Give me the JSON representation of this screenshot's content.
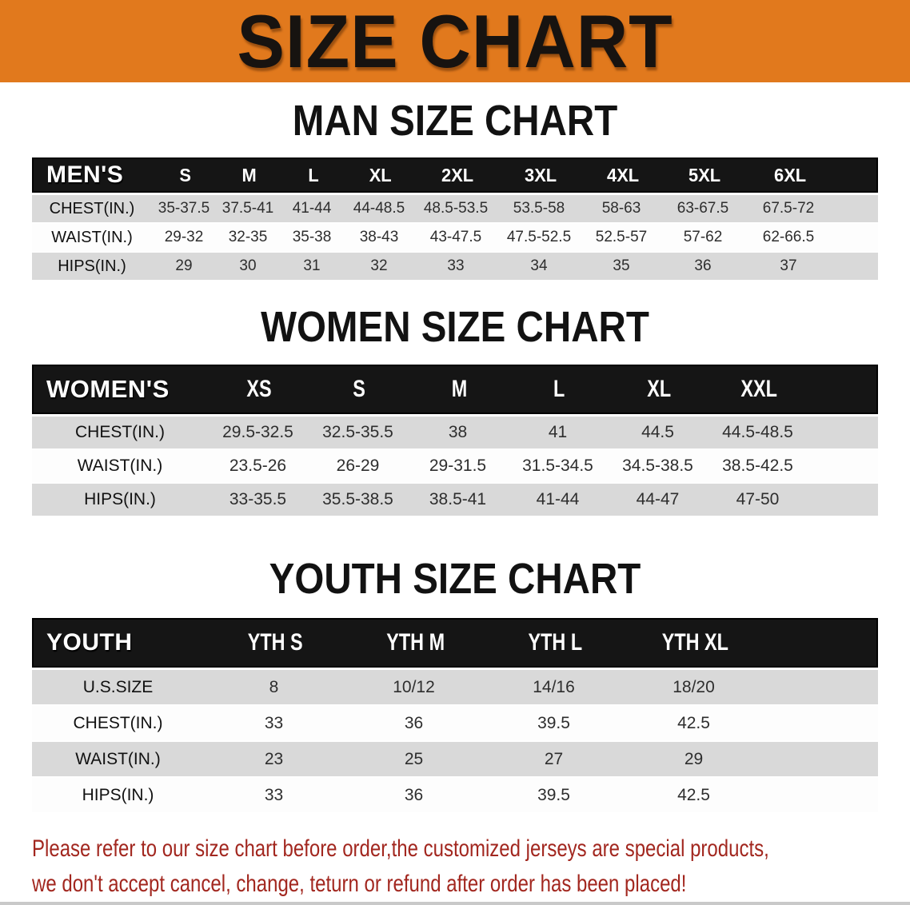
{
  "banner": {
    "title": "SIZE CHART",
    "bg_color": "#E1791D"
  },
  "colors": {
    "banner_orange": "#E1791D",
    "table_header_black": "#151515",
    "row_gray": "#D9D9D9",
    "disclaimer_red": "#A2271F"
  },
  "sections": [
    {
      "heading": "MAN SIZE CHART",
      "table": {
        "name": "MEN'S",
        "sizes": [
          "S",
          "M",
          "L",
          "XL",
          "2XL",
          "3XL",
          "4XL",
          "5XL",
          "6XL"
        ],
        "rows": [
          {
            "label": "CHEST(IN.)",
            "values": [
              "35-37.5",
              "37.5-41",
              "41-44",
              "44-48.5",
              "48.5-53.5",
              "53.5-58",
              "58-63",
              "63-67.5",
              "67.5-72"
            ]
          },
          {
            "label": "WAIST(IN.)",
            "values": [
              "29-32",
              "32-35",
              "35-38",
              "38-43",
              "43-47.5",
              "47.5-52.5",
              "52.5-57",
              "57-62",
              "62-66.5"
            ]
          },
          {
            "label": "HIPS(IN.)",
            "values": [
              "29",
              "30",
              "31",
              "32",
              "33",
              "34",
              "35",
              "36",
              "37"
            ]
          }
        ]
      }
    },
    {
      "heading": "WOMEN SIZE CHART",
      "table": {
        "name": "WOMEN'S",
        "sizes": [
          "XS",
          "S",
          "M",
          "L",
          "XL",
          "XXL"
        ],
        "rows": [
          {
            "label": "CHEST(IN.)",
            "values": [
              "29.5-32.5",
              "32.5-35.5",
              "38",
              "41",
              "44.5",
              "44.5-48.5"
            ]
          },
          {
            "label": "WAIST(IN.)",
            "values": [
              "23.5-26",
              "26-29",
              "29-31.5",
              "31.5-34.5",
              "34.5-38.5",
              "38.5-42.5"
            ]
          },
          {
            "label": "HIPS(IN.)",
            "values": [
              "33-35.5",
              "35.5-38.5",
              "38.5-41",
              "41-44",
              "44-47",
              "47-50"
            ]
          }
        ]
      }
    },
    {
      "heading": "YOUTH SIZE CHART",
      "table": {
        "name": "YOUTH",
        "sizes": [
          "YTH S",
          "YTH M",
          "YTH L",
          "YTH XL"
        ],
        "rows": [
          {
            "label": "U.S.SIZE",
            "values": [
              "8",
              "10/12",
              "14/16",
              "18/20"
            ]
          },
          {
            "label": "CHEST(IN.)",
            "values": [
              "33",
              "36",
              "39.5",
              "42.5"
            ]
          },
          {
            "label": "WAIST(IN.)",
            "values": [
              "23",
              "25",
              "27",
              "29"
            ]
          },
          {
            "label": "HIPS(IN.)",
            "values": [
              "33",
              "36",
              "39.5",
              "42.5"
            ]
          }
        ]
      }
    }
  ],
  "disclaimer": {
    "line1": "Please refer to our size chart before order,the customized jerseys are special products,",
    "line2": "we don't accept cancel, change, teturn or refund after order has been placed!"
  }
}
